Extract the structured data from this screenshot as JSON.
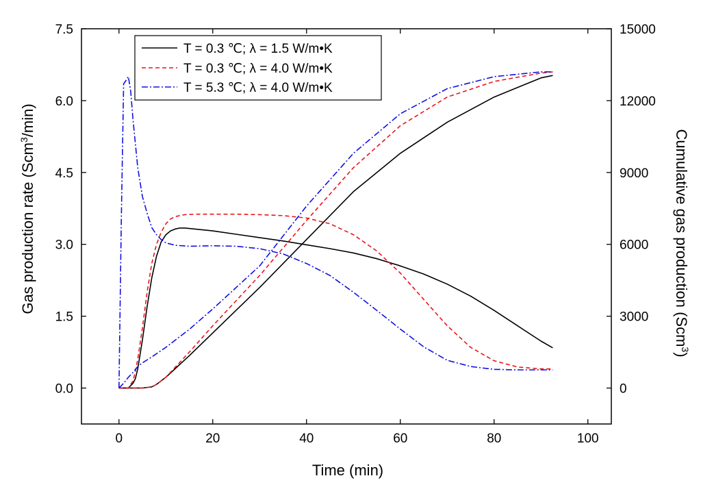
{
  "chart_data": {
    "type": "line",
    "title": "",
    "xlabel": "Time (min)",
    "ylabel": {
      "prefix": "Gas production rate (Scm",
      "sup": "3",
      "suffix": "/min)"
    },
    "y2label": {
      "prefix": "Cumulative gas production (Scm",
      "sup": "3",
      "suffix": ")"
    },
    "xlim": [
      -8,
      105
    ],
    "ylim": [
      -0.75,
      7.5
    ],
    "y2lim": [
      -1500,
      15000
    ],
    "xticks": [
      "0",
      "20",
      "40",
      "60",
      "80",
      "100"
    ],
    "yticks": [
      "0.0",
      "1.5",
      "3.0",
      "4.5",
      "6.0",
      "7.5"
    ],
    "y2ticks": [
      "0",
      "3000",
      "6000",
      "9000",
      "12000",
      "15000"
    ],
    "xtick_values": [
      0,
      20,
      40,
      60,
      80,
      100
    ],
    "ytick_values": [
      0,
      1.5,
      3.0,
      4.5,
      6.0,
      7.5
    ],
    "y2tick_values": [
      0,
      3000,
      6000,
      9000,
      12000,
      15000
    ],
    "legend": [
      {
        "label": "T = 0.3 ℃; λ = 1.5 W/m•K",
        "color": "#000000",
        "dash": "solid"
      },
      {
        "label": "T = 0.3 ℃; λ = 4.0 W/m•K",
        "color": "#e8141c",
        "dash": "dash"
      },
      {
        "label": "T = 5.3 ℃; λ = 4.0 W/m•K",
        "color": "#1010e0",
        "dash": "dashdot"
      }
    ],
    "series": [
      {
        "name": "rate T=0.3, λ=1.5",
        "axis": "left",
        "style": 0,
        "x": [
          0,
          2,
          3,
          3.5,
          4,
          5,
          6,
          7,
          8,
          9,
          10,
          11,
          12,
          13,
          14,
          15,
          20,
          25,
          30,
          35,
          40,
          45,
          50,
          55,
          60,
          65,
          70,
          75,
          80,
          85,
          90,
          92.5
        ],
        "y": [
          0,
          0,
          0.1,
          0.2,
          0.4,
          1.0,
          1.7,
          2.3,
          2.75,
          3.05,
          3.2,
          3.28,
          3.32,
          3.34,
          3.34,
          3.33,
          3.28,
          3.21,
          3.14,
          3.07,
          2.99,
          2.91,
          2.82,
          2.7,
          2.55,
          2.38,
          2.17,
          1.92,
          1.62,
          1.3,
          0.98,
          0.84
        ]
      },
      {
        "name": "rate T=0.3, λ=4.0",
        "axis": "left",
        "style": 1,
        "x": [
          0,
          2,
          3,
          3.5,
          4,
          5,
          6,
          7,
          8,
          9,
          10,
          11,
          12,
          14,
          16,
          20,
          25,
          30,
          35,
          40,
          45,
          50,
          55,
          60,
          65,
          70,
          75,
          80,
          85,
          90,
          92.5
        ],
        "y": [
          0,
          0,
          0.15,
          0.35,
          0.6,
          1.25,
          2.0,
          2.6,
          3.0,
          3.25,
          3.43,
          3.53,
          3.58,
          3.62,
          3.63,
          3.63,
          3.63,
          3.62,
          3.6,
          3.55,
          3.43,
          3.2,
          2.86,
          2.4,
          1.85,
          1.3,
          0.85,
          0.57,
          0.44,
          0.4,
          0.4
        ]
      },
      {
        "name": "rate T=5.3, λ=4.0",
        "axis": "left",
        "style": 2,
        "x": [
          0,
          0.5,
          1,
          1.5,
          2,
          2.5,
          3,
          3.5,
          4,
          5,
          6,
          7,
          8,
          9,
          10,
          12,
          15,
          20,
          25,
          30,
          35,
          40,
          45,
          50,
          55,
          60,
          65,
          70,
          75,
          80,
          85,
          90,
          92.5
        ],
        "y": [
          0,
          3.5,
          6.35,
          6.42,
          6.5,
          6.2,
          5.6,
          5.1,
          4.6,
          4.0,
          3.65,
          3.35,
          3.2,
          3.1,
          3.03,
          2.98,
          2.96,
          2.97,
          2.96,
          2.91,
          2.8,
          2.6,
          2.35,
          2.0,
          1.62,
          1.23,
          0.86,
          0.58,
          0.45,
          0.39,
          0.38,
          0.38,
          0.38
        ]
      },
      {
        "name": "cumulative T=0.3, λ=1.5",
        "axis": "right",
        "style": 0,
        "x": [
          0,
          5,
          7,
          8,
          10,
          15,
          20,
          30,
          40,
          50,
          60,
          70,
          80,
          90,
          92.5
        ],
        "y": [
          0,
          0,
          50,
          150,
          450,
          1350,
          2300,
          4200,
          6200,
          8200,
          9800,
          11100,
          12150,
          12950,
          13050
        ]
      },
      {
        "name": "cumulative T=0.3, λ=4.0",
        "axis": "right",
        "style": 1,
        "x": [
          0,
          5,
          7,
          8,
          10,
          15,
          20,
          30,
          40,
          50,
          60,
          70,
          80,
          90,
          92.5
        ],
        "y": [
          0,
          0,
          50,
          150,
          450,
          1500,
          2600,
          4700,
          7000,
          9200,
          10950,
          12150,
          12800,
          13150,
          13200
        ]
      },
      {
        "name": "cumulative T=5.3, λ=4.0",
        "axis": "right",
        "style": 2,
        "x": [
          0,
          1,
          2,
          3,
          4,
          5,
          7,
          10,
          15,
          20,
          30,
          40,
          50,
          60,
          70,
          80,
          90,
          92.5
        ],
        "y": [
          0,
          200,
          450,
          650,
          900,
          1050,
          1300,
          1700,
          2450,
          3300,
          5100,
          7600,
          9800,
          11450,
          12500,
          13000,
          13200,
          13200
        ]
      }
    ]
  }
}
